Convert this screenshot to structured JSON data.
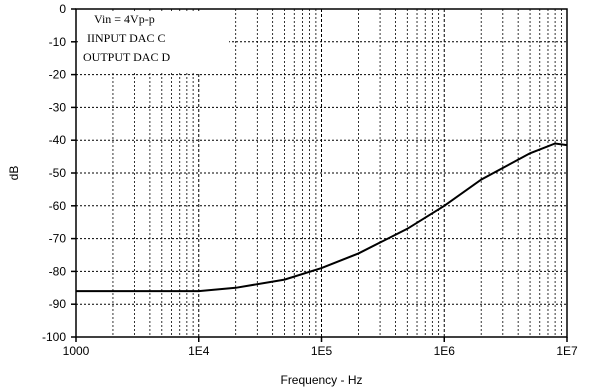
{
  "chart_data": {
    "type": "line",
    "title": "",
    "xlabel": "Frequency - Hz",
    "ylabel": "dB",
    "x_scale": "log",
    "xlim": [
      1000,
      10000000
    ],
    "ylim": [
      -100,
      0
    ],
    "grid": true,
    "x_tick_labels": [
      "1000",
      "1E4",
      "1E5",
      "1E6",
      "1E7"
    ],
    "x_tick_values": [
      1000,
      10000,
      100000,
      1000000,
      10000000
    ],
    "y_ticks": [
      0,
      -10,
      -20,
      -30,
      -40,
      -50,
      -60,
      -70,
      -80,
      -90,
      -100
    ],
    "annotations": [
      "Vin = 4Vp-p",
      "IINPUT DAC C",
      "OUTPUT DAC D"
    ],
    "series": [
      {
        "x": [
          1000,
          2000,
          5000,
          10000,
          20000,
          50000,
          100000,
          200000,
          500000,
          1000000,
          2000000,
          5000000,
          8000000,
          10000000
        ],
        "y": [
          -86,
          -86,
          -86,
          -86,
          -85,
          -82.5,
          -79,
          -74.5,
          -67,
          -60,
          -52,
          -44,
          -41,
          -41.5
        ]
      }
    ]
  }
}
